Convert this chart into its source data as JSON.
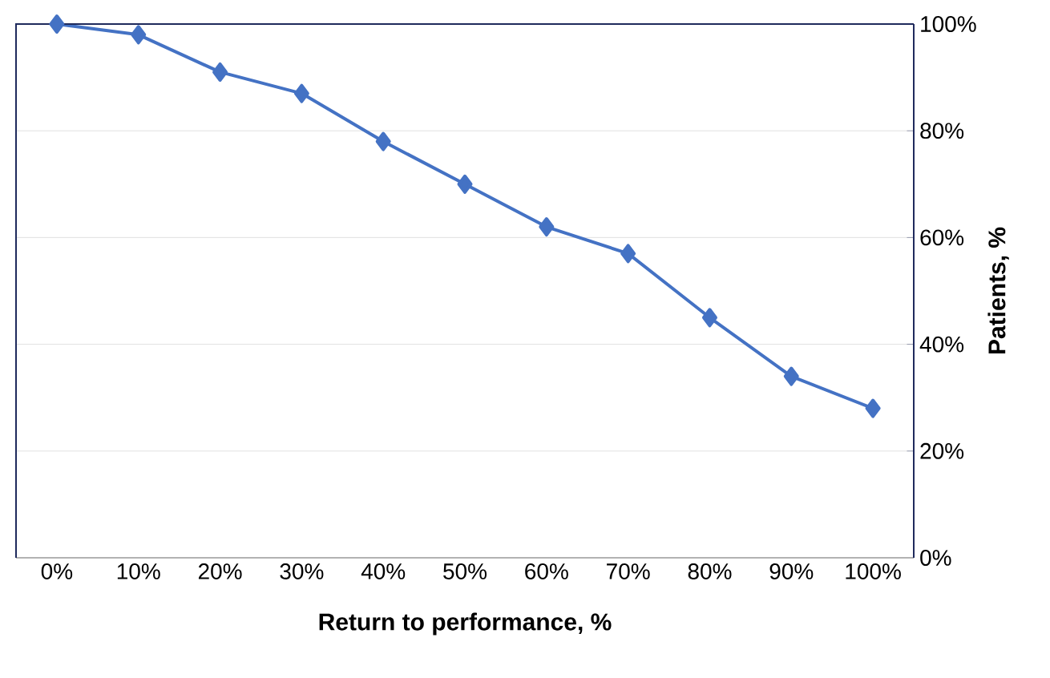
{
  "chart_data": {
    "type": "line",
    "categories": [
      "0%",
      "10%",
      "20%",
      "30%",
      "40%",
      "50%",
      "60%",
      "70%",
      "80%",
      "90%",
      "100%"
    ],
    "series": [
      {
        "color": "#4472c4",
        "values": [
          100,
          98,
          91,
          87,
          78,
          70,
          62,
          57,
          45,
          34,
          28
        ]
      }
    ],
    "xlabel": "Return to performance, %",
    "y2label": "Patients, %",
    "ylim": [
      0,
      100
    ],
    "yticks": [
      {
        "value": 0,
        "label": "0%"
      },
      {
        "value": 20,
        "label": "20%"
      },
      {
        "value": 40,
        "label": "40%"
      },
      {
        "value": 60,
        "label": "60%"
      },
      {
        "value": 80,
        "label": "80%"
      },
      {
        "value": 100,
        "label": "100%"
      }
    ],
    "grid": "y",
    "marker": "diamond",
    "line_style": "solid"
  }
}
